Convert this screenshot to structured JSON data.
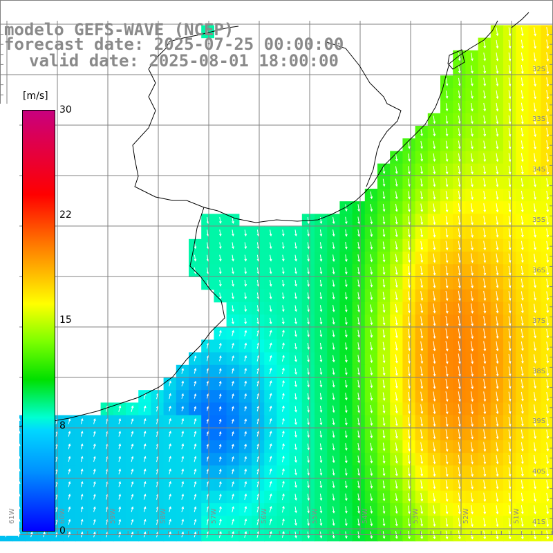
{
  "header": {
    "model": "modelo GEFS-WAVE (NCEP)",
    "forecast": "forecast date: 2025-07-25 00:00:00",
    "valid": "valid date: 2025-08-01 18:00:00"
  },
  "colorbar": {
    "unit": "[m/s]",
    "ticks": [
      "30",
      "22",
      "15",
      "8",
      "0"
    ],
    "colors": [
      "#c8007f",
      "#ff0000",
      "#ff7a00",
      "#ffff00",
      "#00e000",
      "#00ffd2",
      "#0090ff",
      "#0000ff"
    ]
  },
  "latitude_labels": [
    "32S",
    "33S",
    "34S",
    "35S",
    "36S",
    "37S",
    "38S",
    "39S",
    "40S",
    "41S"
  ],
  "longitude_labels": [
    "61W",
    "60W",
    "59W",
    "58W",
    "57W",
    "56W",
    "55W",
    "54W",
    "53W",
    "52W",
    "51W"
  ],
  "field": {
    "parameter": "wind speed",
    "lat_range": [
      -41.2,
      -31.5
    ],
    "lon_range": [
      -61.4,
      -50.4
    ]
  }
}
